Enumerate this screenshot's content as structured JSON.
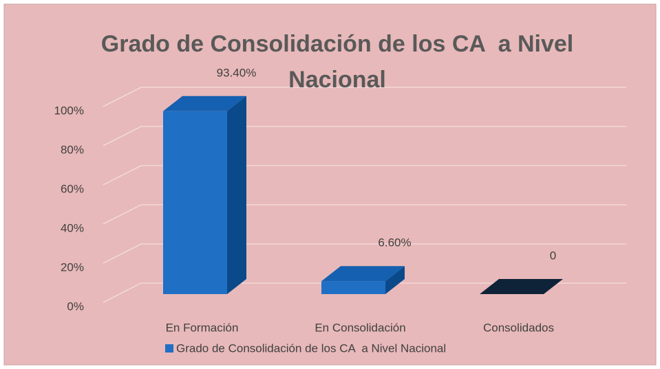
{
  "chart_data": {
    "type": "bar3d",
    "title": "Grado de Consolidación de los CA  a Nivel Nacional",
    "categories": [
      "En Formación",
      "En Consolidación",
      "Consolidados"
    ],
    "series": [
      {
        "name": "Grado de Consolidación de los CA  a Nivel Nacional",
        "color": "#1f6fc5",
        "values": [
          93.4,
          6.6,
          0
        ],
        "value_labels": [
          "93.40%",
          "6.60%",
          "0"
        ]
      }
    ],
    "ylim": [
      0,
      100
    ],
    "yticks": [
      {
        "value": 0,
        "label": "0%"
      },
      {
        "value": 20,
        "label": "20%"
      },
      {
        "value": 40,
        "label": "40%"
      },
      {
        "value": 60,
        "label": "60%"
      },
      {
        "value": 80,
        "label": "80%"
      },
      {
        "value": 100,
        "label": "100%"
      }
    ],
    "grid": true,
    "legend": "bottom"
  }
}
